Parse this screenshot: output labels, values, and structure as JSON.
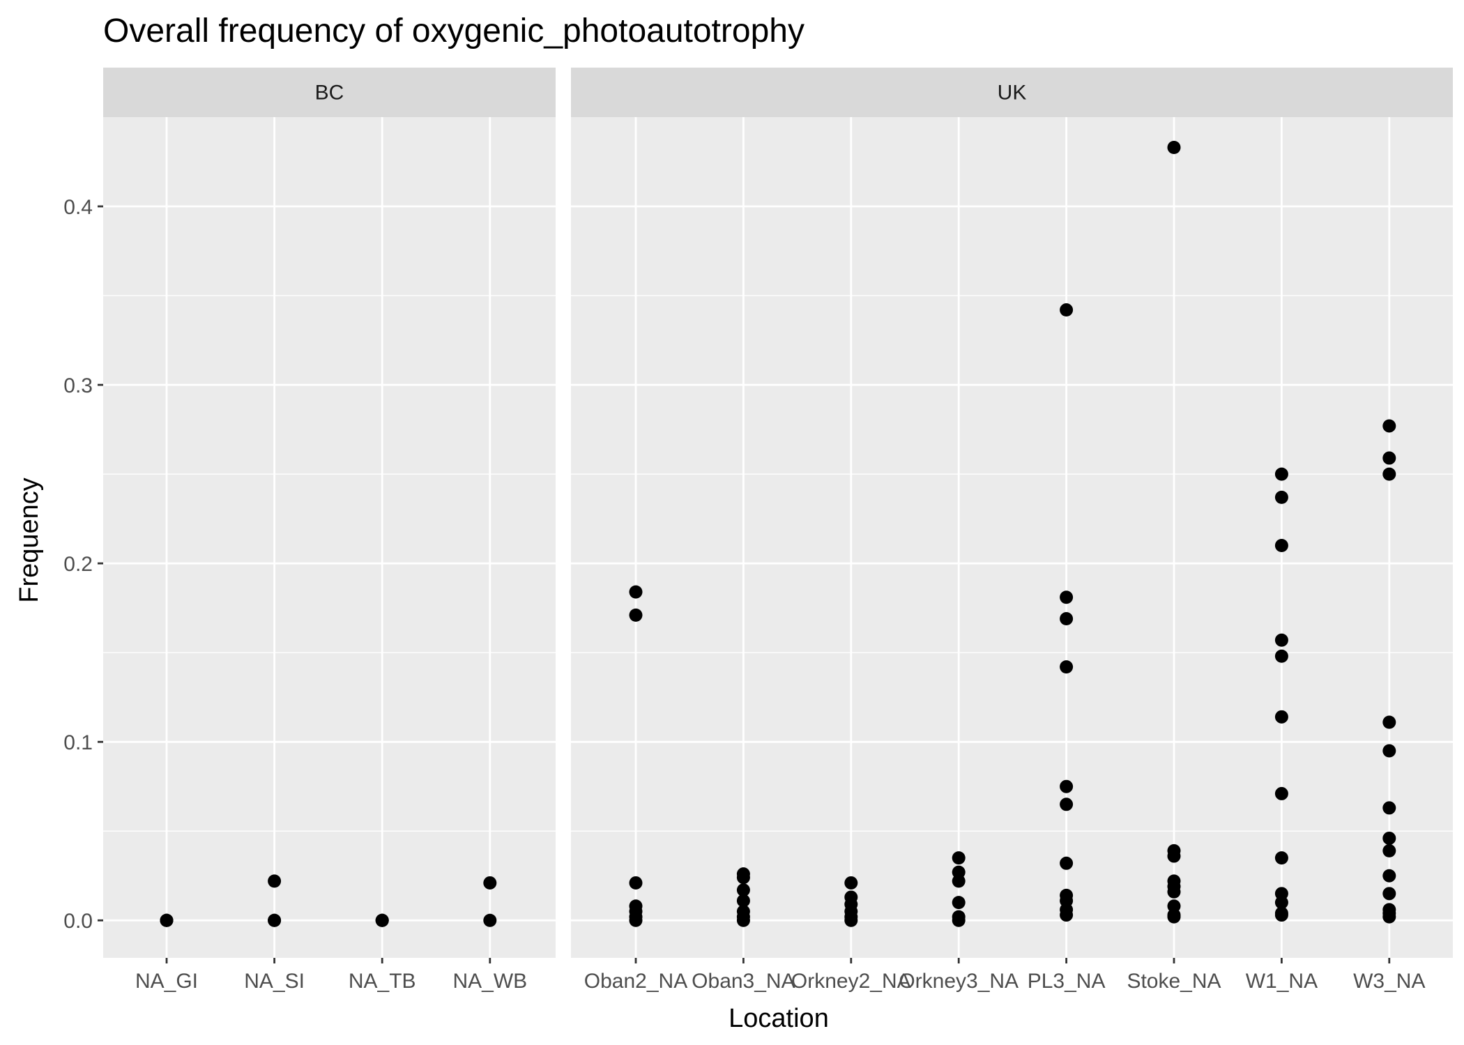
{
  "chart_data": {
    "type": "scatter",
    "title": "Overall frequency of oxygenic_photoautotrophy",
    "xlabel": "Location",
    "ylabel": "Frequency",
    "ylim": [
      -0.021,
      0.45
    ],
    "y_ticks": [
      "0.0",
      "0.1",
      "0.2",
      "0.3",
      "0.4"
    ],
    "grid": true,
    "legend": "none",
    "point_color": "#000000",
    "panel_bg": "#ebebeb",
    "strip_bg": "#d9d9d9",
    "panels": [
      {
        "name": "BC",
        "categories": [
          {
            "label": "NA_GI",
            "values": [
              0.0,
              0.0,
              0.0
            ]
          },
          {
            "label": "NA_SI",
            "values": [
              0.022,
              0.0,
              0.0
            ]
          },
          {
            "label": "NA_TB",
            "values": [
              0.0,
              0.0,
              0.0
            ]
          },
          {
            "label": "NA_WB",
            "values": [
              0.021,
              0.0
            ]
          }
        ]
      },
      {
        "name": "UK",
        "categories": [
          {
            "label": "Oban2_NA",
            "values": [
              0.184,
              0.171,
              0.021,
              0.008,
              0.005,
              0.002,
              0.0
            ]
          },
          {
            "label": "Oban3_NA",
            "values": [
              0.026,
              0.024,
              0.017,
              0.011,
              0.005,
              0.002,
              0.0
            ]
          },
          {
            "label": "Orkney2_NA",
            "values": [
              0.021,
              0.013,
              0.009,
              0.005,
              0.002,
              0.0
            ]
          },
          {
            "label": "Orkney3_NA",
            "values": [
              0.035,
              0.027,
              0.022,
              0.01,
              0.002,
              0.0
            ]
          },
          {
            "label": "PL3_NA",
            "values": [
              0.342,
              0.181,
              0.169,
              0.142,
              0.075,
              0.065,
              0.032,
              0.014,
              0.011,
              0.006,
              0.003
            ]
          },
          {
            "label": "Stoke_NA",
            "values": [
              0.433,
              0.039,
              0.036,
              0.022,
              0.019,
              0.016,
              0.008,
              0.003,
              0.002
            ]
          },
          {
            "label": "W1_NA",
            "values": [
              0.25,
              0.237,
              0.21,
              0.157,
              0.148,
              0.114,
              0.071,
              0.035,
              0.015,
              0.01,
              0.004,
              0.003
            ]
          },
          {
            "label": "W3_NA",
            "values": [
              0.277,
              0.259,
              0.25,
              0.111,
              0.095,
              0.063,
              0.046,
              0.039,
              0.025,
              0.015,
              0.006,
              0.004,
              0.002
            ]
          }
        ]
      }
    ]
  }
}
